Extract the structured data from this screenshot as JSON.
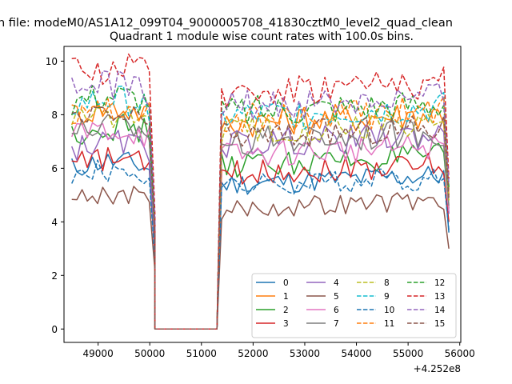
{
  "chart_data": {
    "type": "line",
    "suptitle": "n file: modeM0/AS1A12_099T04_9000005708_41830cztM0_level2_quad_clean",
    "title": "Quadrant 1 module wise count rates with 100.0s bins.",
    "xlabel": "",
    "ylabel": "",
    "x_offset_label": "+4.252e8",
    "xlim": [
      48340,
      56020
    ],
    "ylim": [
      -0.5,
      10.55
    ],
    "x_ticks": [
      49000,
      50000,
      51000,
      52000,
      53000,
      54000,
      55000,
      56000
    ],
    "x_tick_labels": [
      "49000",
      "50000",
      "51000",
      "52000",
      "53000",
      "54000",
      "55000",
      "56000"
    ],
    "y_ticks": [
      0,
      2,
      4,
      6,
      8,
      10
    ],
    "y_tick_labels": [
      "0",
      "2",
      "4",
      "6",
      "8",
      "10"
    ],
    "grid": false,
    "legend_placement": "lower-right",
    "gap": [
      50100,
      51300
    ],
    "first_segment": [
      48490,
      50000
    ],
    "second_segment": [
      51390,
      55690
    ],
    "end_x": 55790,
    "bin_width": 100,
    "series": [
      {
        "name": "0",
        "color": "#1f77b4",
        "dash": "solid",
        "level1": 6.0,
        "level2": 5.4,
        "end": 3.6
      },
      {
        "name": "1",
        "color": "#ff7f0e",
        "dash": "solid",
        "level1": 8.0,
        "level2": 7.7,
        "end": 5.0
      },
      {
        "name": "2",
        "color": "#2ca02c",
        "dash": "solid",
        "level1": 7.3,
        "level2": 6.1,
        "end": 4.5
      },
      {
        "name": "3",
        "color": "#d62728",
        "dash": "solid",
        "level1": 6.1,
        "level2": 5.8,
        "end": 4.0
      },
      {
        "name": "4",
        "color": "#9467bd",
        "dash": "solid",
        "level1": 6.7,
        "level2": 6.9,
        "end": 4.3
      },
      {
        "name": "5",
        "color": "#8c564b",
        "dash": "solid",
        "level1": 4.8,
        "level2": 4.45,
        "end": 3.0
      },
      {
        "name": "6",
        "color": "#e377c2",
        "dash": "solid",
        "level1": 7.2,
        "level2": 6.5,
        "end": 4.4
      },
      {
        "name": "7",
        "color": "#7f7f7f",
        "dash": "solid",
        "level1": 7.4,
        "level2": 7.0,
        "end": 4.6
      },
      {
        "name": "8",
        "color": "#bcbd22",
        "dash": "dashed",
        "level1": 7.8,
        "level2": 7.4,
        "end": 4.8
      },
      {
        "name": "9",
        "color": "#17becf",
        "dash": "dashed",
        "level1": 8.3,
        "level2": 7.9,
        "end": 5.2
      },
      {
        "name": "10",
        "color": "#1f77b4",
        "dash": "dashed",
        "level1": 5.7,
        "level2": 5.3,
        "end": 3.7
      },
      {
        "name": "11",
        "color": "#ff7f0e",
        "dash": "dashed",
        "level1": 8.1,
        "level2": 7.8,
        "end": 5.1
      },
      {
        "name": "12",
        "color": "#2ca02c",
        "dash": "dashed",
        "level1": 8.5,
        "level2": 8.1,
        "end": 5.3
      },
      {
        "name": "13",
        "color": "#d62728",
        "dash": "dashed",
        "level1": 9.5,
        "level2": 8.9,
        "end": 5.6
      },
      {
        "name": "14",
        "color": "#9467bd",
        "dash": "dashed",
        "level1": 8.9,
        "level2": 8.3,
        "end": 5.4
      },
      {
        "name": "15",
        "color": "#8c564b",
        "dash": "dashed",
        "level1": 7.7,
        "level2": 7.2,
        "end": 4.9
      }
    ]
  }
}
